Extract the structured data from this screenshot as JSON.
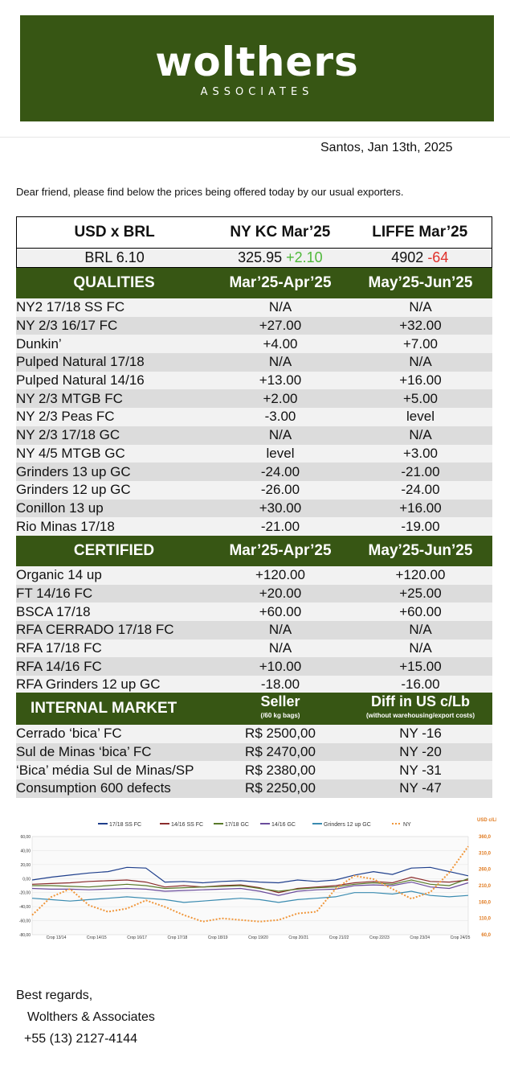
{
  "header": {
    "brand": "wolthers",
    "brand_sub": "ASSOCIATES",
    "banner_color": "#375614"
  },
  "date": "Santos, Jan 13th, 2025",
  "intro": "Dear friend, please find below the prices being offered today by our usual exporters.",
  "markets": {
    "headers": [
      "USD x BRL",
      "NY KC Mar’25",
      "LIFFE Mar’25"
    ],
    "brl": "BRL 6.10",
    "ny_price": "325.95",
    "ny_change": "+2.10",
    "liffe_price": "4902",
    "liffe_change": "-64",
    "up_color": "#4fb83a",
    "down_color": "#e0302a"
  },
  "qualities": {
    "title": "QUALITIES",
    "col2": "Mar’25-Apr’25",
    "col3": "May’25-Jun’25",
    "rows": [
      [
        "NY2 17/18 SS FC",
        "N/A",
        "N/A"
      ],
      [
        "NY 2/3 16/17 FC",
        "+27.00",
        "+32.00"
      ],
      [
        "Dunkin’",
        "+4.00",
        "+7.00"
      ],
      [
        "Pulped Natural 17/18",
        "N/A",
        "N/A"
      ],
      [
        "Pulped Natural 14/16",
        "+13.00",
        "+16.00"
      ],
      [
        "NY 2/3 MTGB FC",
        "+2.00",
        "+5.00"
      ],
      [
        "NY 2/3 Peas FC",
        "-3.00",
        "level"
      ],
      [
        "NY 2/3 17/18 GC",
        "N/A",
        "N/A"
      ],
      [
        "NY 4/5 MTGB GC",
        "level",
        "+3.00"
      ],
      [
        "Grinders 13 up GC",
        "-24.00",
        "-21.00"
      ],
      [
        "Grinders 12 up GC",
        "-26.00",
        "-24.00"
      ],
      [
        "Conillon 13 up",
        "+30.00",
        "+16.00"
      ],
      [
        "Rio Minas 17/18",
        "-21.00",
        "-19.00"
      ]
    ]
  },
  "certified": {
    "title": "CERTIFIED",
    "col2": "Mar’25-Apr’25",
    "col3": "May’25-Jun’25",
    "rows": [
      [
        "Organic 14 up",
        "+120.00",
        "+120.00"
      ],
      [
        "FT 14/16 FC",
        "+20.00",
        "+25.00"
      ],
      [
        "BSCA 17/18",
        "+60.00",
        "+60.00"
      ],
      [
        "RFA CERRADO 17/18 FC",
        "N/A",
        "N/A"
      ],
      [
        "RFA 17/18 FC",
        "N/A",
        "N/A"
      ],
      [
        "RFA 14/16 FC",
        "+10.00",
        "+15.00"
      ],
      [
        "RFA Grinders 12 up GC",
        "-18.00",
        "-16.00"
      ]
    ]
  },
  "internal": {
    "title": "INTERNAL MARKET",
    "col2": "Seller",
    "col2_sub": "(/60 kg bags)",
    "col3": "Diff in US c/Lb",
    "col3_sub": "(without warehousing/export costs)",
    "rows": [
      [
        "Cerrado ‘bica’ FC",
        "R$ 2500,00",
        "NY -16"
      ],
      [
        "Sul de Minas ‘bica’ FC",
        "R$ 2470,00",
        "NY -20"
      ],
      [
        "‘Bica’ média Sul de Minas/SP",
        "R$ 2380,00",
        "NY -31"
      ],
      [
        "Consumption 600 defects",
        "R$ 2250,00",
        "NY -47"
      ]
    ]
  },
  "chart_data": {
    "type": "line",
    "legend": [
      "17/18 SS FC",
      "14/16 SS FC",
      "17/18 GC",
      "14/16 GC",
      "Grinders 12 up GC",
      "NY"
    ],
    "series_colors": [
      "#1f3f8c",
      "#8b2c2c",
      "#5a7a2a",
      "#6a4c9c",
      "#3a8bb0",
      "#f0963a"
    ],
    "y_left": {
      "ticks": [
        "60,00",
        "40,00",
        "20,00",
        "0,00",
        "-20,00",
        "-40,00",
        "-60,00",
        "-80,00"
      ],
      "ylim": [
        -80,
        60
      ]
    },
    "y_right": {
      "label": "USD c/Lb",
      "ticks": [
        "360,0",
        "310,0",
        "260,0",
        "210,0",
        "160,0",
        "110,0",
        "60,0"
      ],
      "ylim": [
        60,
        360
      ]
    },
    "crops": [
      "Crop 13/14",
      "Crop 14/15",
      "Crop 16/17",
      "Crop 17/18",
      "Crop 18/19",
      "Crop 19/20",
      "Crop 20/21",
      "Crop 21/22",
      "Crop 22/23",
      "Crop 23/24",
      "Crop 24/25"
    ],
    "series": [
      {
        "name": "17/18 SS FC",
        "values": [
          -2,
          2,
          5,
          8,
          10,
          16,
          15,
          -5,
          -4,
          -6,
          -4,
          -3,
          -5,
          -6,
          -2,
          -4,
          -2,
          5,
          10,
          6,
          15,
          16,
          10,
          4
        ]
      },
      {
        "name": "14/16 SS FC",
        "values": [
          -8,
          -7,
          -6,
          -4,
          -3,
          -2,
          -5,
          -12,
          -10,
          -12,
          -10,
          -9,
          -13,
          -20,
          -14,
          -12,
          -10,
          -6,
          -4,
          -6,
          2,
          -4,
          -5,
          -2
        ]
      },
      {
        "name": "17/18 GC",
        "values": [
          -10,
          -10,
          -11,
          -12,
          -10,
          -8,
          -10,
          -14,
          -13,
          -12,
          -11,
          -10,
          -14,
          -18,
          -15,
          -13,
          -12,
          -8,
          -6,
          -8,
          -2,
          -8,
          -10,
          0
        ]
      },
      {
        "name": "14/16 GC",
        "values": [
          -14,
          -15,
          -15,
          -16,
          -15,
          -14,
          -15,
          -18,
          -17,
          -16,
          -15,
          -14,
          -18,
          -24,
          -18,
          -16,
          -15,
          -10,
          -9,
          -10,
          -5,
          -12,
          -14,
          -6
        ]
      },
      {
        "name": "Grinders 12 up GC",
        "values": [
          -28,
          -30,
          -32,
          -30,
          -28,
          -26,
          -28,
          -30,
          -34,
          -32,
          -30,
          -28,
          -30,
          -34,
          -30,
          -28,
          -26,
          -20,
          -20,
          -22,
          -18,
          -24,
          -26,
          -24
        ]
      },
      {
        "name": "NY",
        "values": [
          120,
          175,
          200,
          150,
          130,
          140,
          165,
          145,
          120,
          100,
          110,
          105,
          100,
          105,
          125,
          130,
          200,
          240,
          230,
          200,
          170,
          190,
          250,
          330
        ]
      }
    ]
  },
  "signature": {
    "greeting": "Best regards,",
    "company": "Wolthers & Associates",
    "phone": "+55 (13) 2127-4144"
  }
}
